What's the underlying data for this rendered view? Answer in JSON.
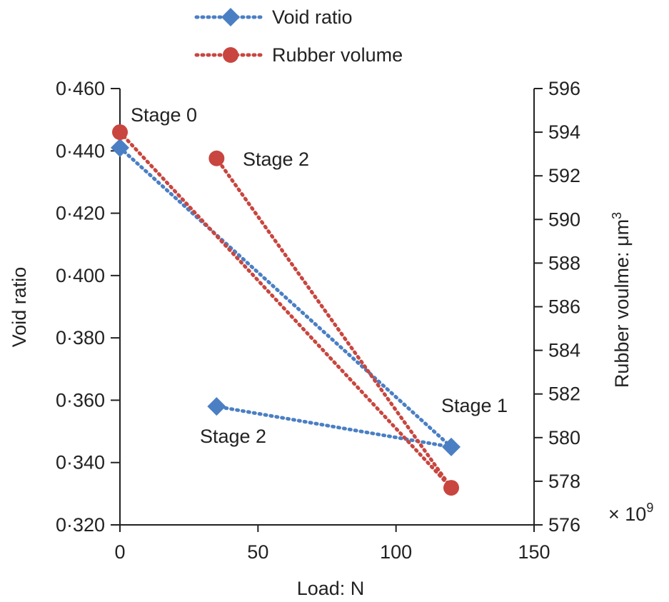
{
  "chart_data": {
    "type": "line",
    "xlabel": "Load: N",
    "ylabel": "Void ratio",
    "y2label": "Rubber voulme: μm",
    "y2label_superscript": "3",
    "y2_multiplier": "× 10",
    "y2_multiplier_exponent": "9",
    "xlim": [
      0,
      150
    ],
    "ylim": [
      0.32,
      0.46
    ],
    "y2lim": [
      576,
      596
    ],
    "x_ticks": [
      "0",
      "50",
      "100",
      "150"
    ],
    "y_ticks": [
      "0·320",
      "0·340",
      "0·360",
      "0·380",
      "0·400",
      "0·420",
      "0·440",
      "0·460"
    ],
    "y2_ticks": [
      "576",
      "578",
      "580",
      "582",
      "584",
      "586",
      "588",
      "590",
      "592",
      "594",
      "596"
    ],
    "legend_position": "top",
    "series": [
      {
        "name": "Void ratio",
        "axis": "left",
        "color": "#4a7fc4",
        "marker": "diamond",
        "points": [
          [
            0,
            0.441
          ],
          [
            120,
            0.345
          ],
          [
            35,
            0.358
          ]
        ]
      },
      {
        "name": "Rubber volume",
        "axis": "right",
        "color": "#c8463f",
        "marker": "circle",
        "points": [
          [
            0,
            594.0
          ],
          [
            120,
            577.7
          ],
          [
            35,
            592.8
          ]
        ]
      }
    ],
    "annotations": [
      {
        "text": "Stage 0"
      },
      {
        "text": "Stage 2"
      },
      {
        "text": "Stage 1"
      },
      {
        "text": "Stage 2"
      }
    ]
  }
}
